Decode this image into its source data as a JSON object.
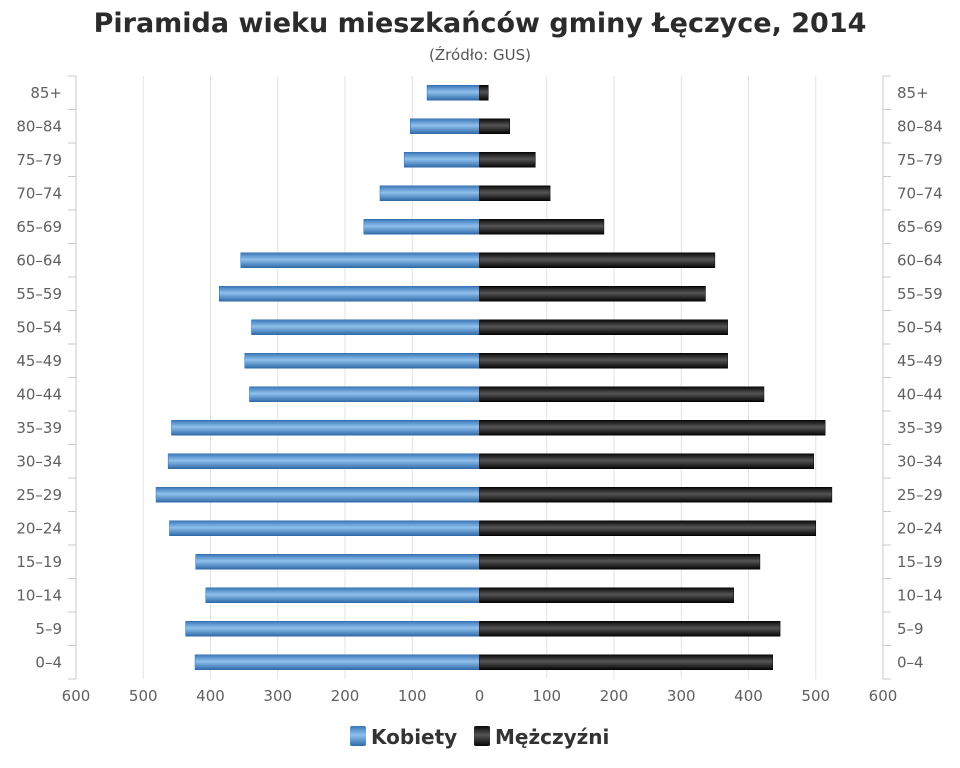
{
  "chart_data": {
    "type": "bar",
    "orientation": "horizontal-pyramid",
    "title": "Piramida wieku mieszkańców gminy Łęczyce, 2014",
    "subtitle": "(Źródło: GUS)",
    "categories": [
      "85+",
      "80–84",
      "75–79",
      "70–74",
      "65–69",
      "60–64",
      "55–59",
      "50–54",
      "45–49",
      "40–44",
      "35–39",
      "30–34",
      "25–29",
      "20–24",
      "15–19",
      "10–14",
      "5–9",
      "0–4"
    ],
    "xlim": [
      -600,
      600
    ],
    "x_ticks": [
      "600",
      "500",
      "400",
      "300",
      "200",
      "100",
      "0",
      "100",
      "200",
      "300",
      "400",
      "500",
      "600"
    ],
    "grid": true,
    "legend_position": "bottom-center",
    "series": [
      {
        "name": "Kobiety",
        "side": "left",
        "color": "#4f8fcd",
        "values": [
          78,
          103,
          112,
          148,
          172,
          355,
          387,
          339,
          349,
          342,
          458,
          463,
          481,
          461,
          422,
          407,
          437,
          423
        ]
      },
      {
        "name": "Mężczyźni",
        "side": "right",
        "color": "#1a1a1a",
        "values": [
          13,
          45,
          83,
          105,
          185,
          350,
          336,
          369,
          369,
          423,
          514,
          497,
          524,
          500,
          417,
          378,
          447,
          436
        ]
      }
    ]
  }
}
